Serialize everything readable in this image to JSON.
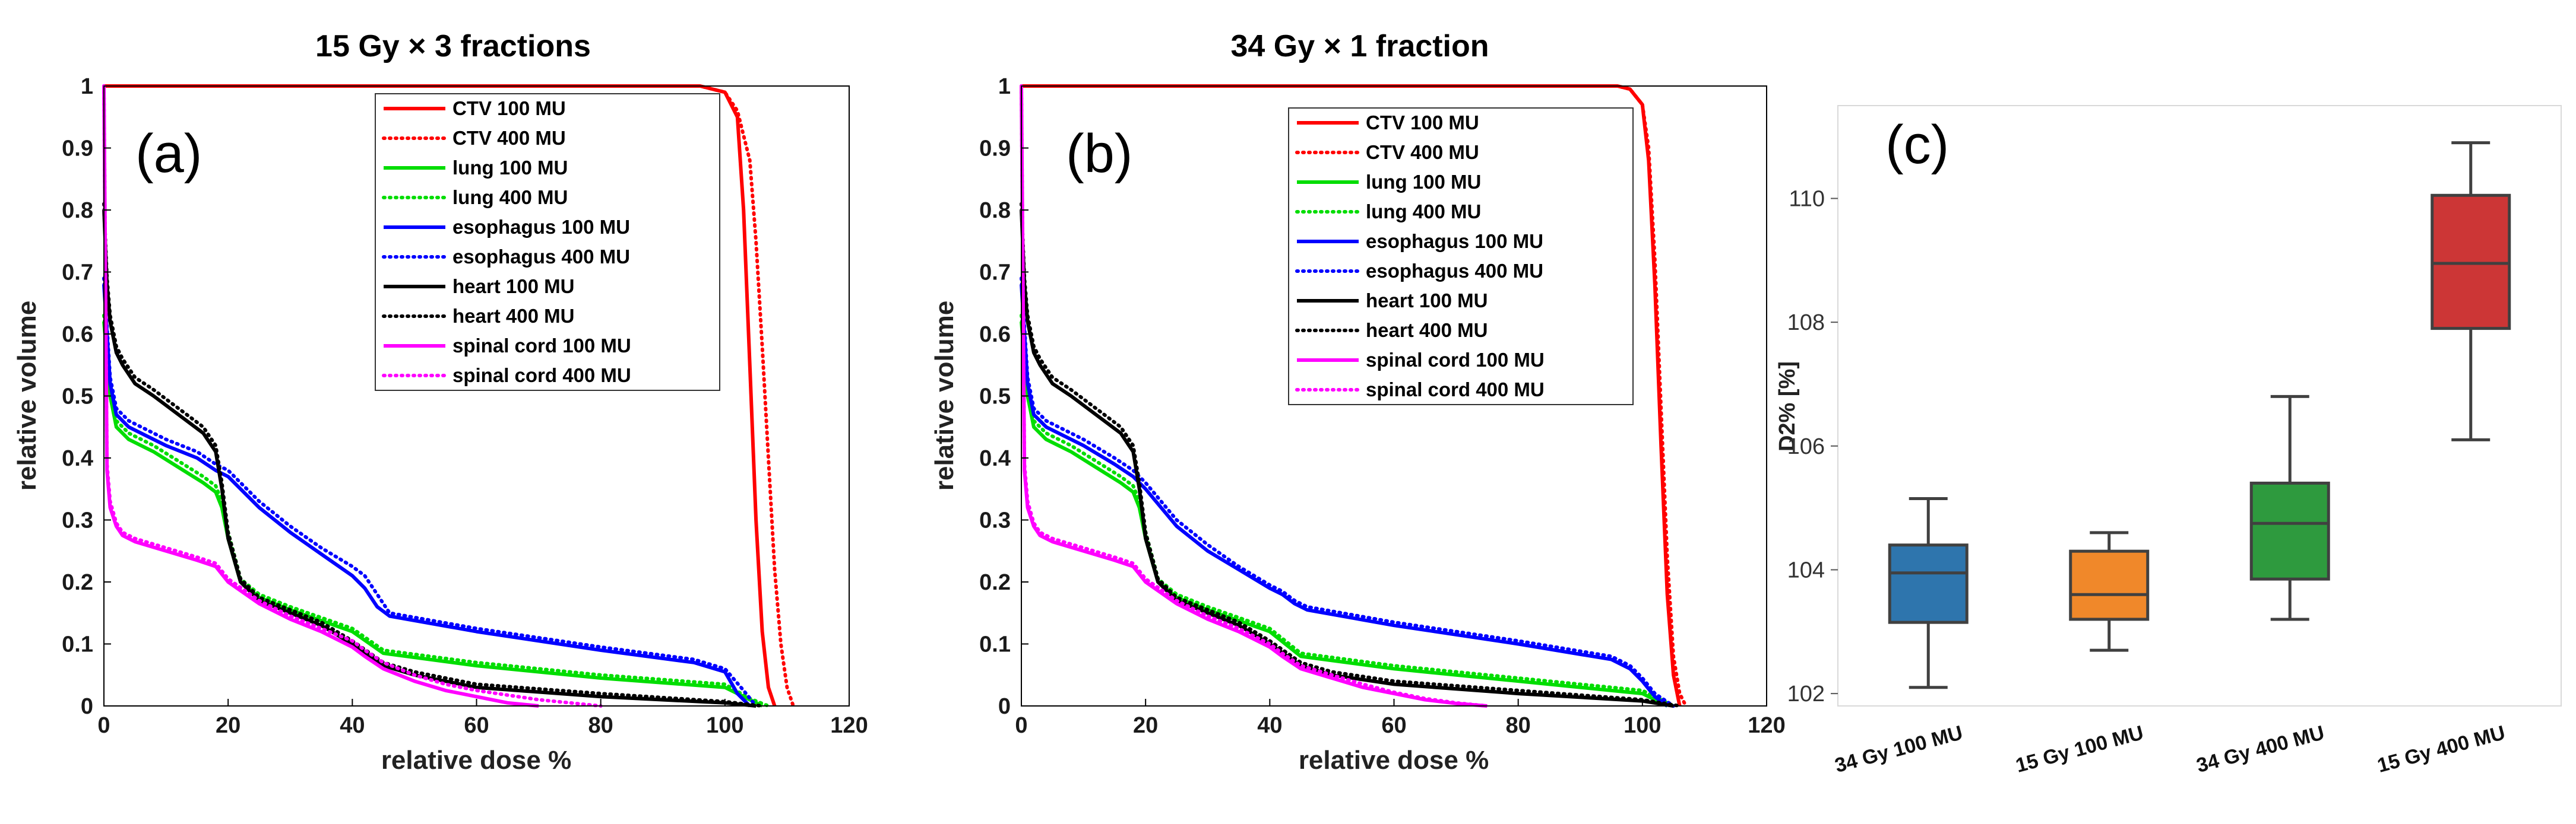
{
  "chart_data": [
    {
      "type": "line",
      "title": "15 Gy × 3 fractions",
      "panel_label": "(a)",
      "xlabel": "relative dose %",
      "ylabel": "relative volume",
      "xlim": [
        0,
        120
      ],
      "ylim": [
        0,
        1
      ],
      "xticks": [
        0,
        20,
        40,
        60,
        80,
        100,
        120
      ],
      "yticks": [
        0,
        0.1,
        0.2,
        0.3,
        0.4,
        0.5,
        0.6,
        0.7,
        0.8,
        0.9,
        1
      ],
      "legend_position": "top-right",
      "series": [
        {
          "name": "CTV 100 MU",
          "color": "#ff0000",
          "dash": "solid",
          "x": [
            0,
            96,
            100,
            102,
            103,
            104,
            105,
            106,
            107,
            108
          ],
          "y": [
            1,
            1,
            0.99,
            0.95,
            0.8,
            0.55,
            0.3,
            0.12,
            0.03,
            0
          ]
        },
        {
          "name": "CTV 400 MU",
          "color": "#ff0000",
          "dash": "dotted",
          "x": [
            0,
            96,
            100,
            102,
            104,
            105,
            106,
            107,
            108,
            109,
            110,
            111
          ],
          "y": [
            1,
            1,
            0.99,
            0.96,
            0.88,
            0.75,
            0.58,
            0.4,
            0.22,
            0.1,
            0.03,
            0
          ]
        },
        {
          "name": "lung 100 MU",
          "color": "#00dd00",
          "dash": "solid",
          "x": [
            0,
            1,
            2,
            4,
            8,
            12,
            16,
            18,
            19,
            20,
            22,
            25,
            30,
            40,
            45,
            60,
            80,
            100,
            104,
            106
          ],
          "y": [
            0.62,
            0.5,
            0.45,
            0.43,
            0.41,
            0.385,
            0.36,
            0.345,
            0.32,
            0.27,
            0.2,
            0.175,
            0.155,
            0.12,
            0.085,
            0.065,
            0.045,
            0.03,
            0.01,
            0
          ]
        },
        {
          "name": "lung 400 MU",
          "color": "#00dd00",
          "dash": "dotted",
          "x": [
            0,
            1,
            2,
            4,
            8,
            12,
            16,
            18,
            19,
            20,
            22,
            25,
            30,
            40,
            45,
            60,
            80,
            100,
            104,
            107
          ],
          "y": [
            0.63,
            0.51,
            0.46,
            0.44,
            0.42,
            0.395,
            0.37,
            0.355,
            0.33,
            0.28,
            0.205,
            0.18,
            0.16,
            0.125,
            0.09,
            0.07,
            0.05,
            0.035,
            0.012,
            0
          ]
        },
        {
          "name": "esophagus 100 MU",
          "color": "#0000ff",
          "dash": "solid",
          "x": [
            0,
            1,
            2,
            4,
            10,
            15,
            18,
            20,
            25,
            30,
            35,
            40,
            42,
            44,
            46,
            60,
            80,
            95,
            100,
            102,
            104
          ],
          "y": [
            0.68,
            0.52,
            0.47,
            0.45,
            0.42,
            0.4,
            0.38,
            0.37,
            0.32,
            0.28,
            0.245,
            0.21,
            0.19,
            0.16,
            0.145,
            0.12,
            0.09,
            0.07,
            0.055,
            0.02,
            0
          ]
        },
        {
          "name": "esophagus 400 MU",
          "color": "#0000ff",
          "dash": "dotted",
          "x": [
            0,
            1,
            2,
            4,
            10,
            15,
            18,
            20,
            25,
            30,
            35,
            40,
            42,
            44,
            46,
            60,
            80,
            95,
            100,
            103,
            105
          ],
          "y": [
            0.69,
            0.53,
            0.48,
            0.46,
            0.43,
            0.41,
            0.39,
            0.38,
            0.33,
            0.29,
            0.255,
            0.225,
            0.21,
            0.18,
            0.15,
            0.125,
            0.095,
            0.075,
            0.06,
            0.025,
            0
          ]
        },
        {
          "name": "heart 100 MU",
          "color": "#000000",
          "dash": "solid",
          "x": [
            0,
            0.5,
            1,
            2,
            3,
            5,
            8,
            12,
            16,
            18,
            19,
            20,
            22,
            25,
            30,
            35,
            40,
            45,
            50,
            60,
            80,
            100,
            105
          ],
          "y": [
            0.8,
            0.68,
            0.62,
            0.57,
            0.55,
            0.52,
            0.5,
            0.47,
            0.44,
            0.41,
            0.35,
            0.27,
            0.2,
            0.17,
            0.15,
            0.13,
            0.1,
            0.065,
            0.05,
            0.03,
            0.015,
            0.005,
            0
          ]
        },
        {
          "name": "heart 400 MU",
          "color": "#000000",
          "dash": "dotted",
          "x": [
            0,
            0.5,
            1,
            2,
            3,
            5,
            8,
            12,
            16,
            18,
            19,
            20,
            22,
            25,
            30,
            35,
            40,
            45,
            50,
            60,
            80,
            100,
            106
          ],
          "y": [
            0.81,
            0.69,
            0.63,
            0.58,
            0.56,
            0.53,
            0.51,
            0.48,
            0.45,
            0.42,
            0.36,
            0.28,
            0.205,
            0.175,
            0.155,
            0.135,
            0.105,
            0.07,
            0.055,
            0.035,
            0.02,
            0.007,
            0
          ]
        },
        {
          "name": "spinal cord 100 MU",
          "color": "#ff00ff",
          "dash": "solid",
          "x": [
            0,
            0.5,
            1,
            2,
            3,
            5,
            10,
            15,
            18,
            20,
            25,
            30,
            35,
            40,
            42,
            45,
            50,
            55,
            60,
            65,
            70
          ],
          "y": [
            1,
            0.38,
            0.32,
            0.29,
            0.275,
            0.265,
            0.25,
            0.235,
            0.225,
            0.2,
            0.165,
            0.14,
            0.12,
            0.095,
            0.08,
            0.06,
            0.04,
            0.025,
            0.015,
            0.005,
            0
          ]
        },
        {
          "name": "spinal cord 400 MU",
          "color": "#ff00ff",
          "dash": "dotted",
          "x": [
            0,
            0.5,
            1,
            2,
            3,
            5,
            10,
            15,
            18,
            20,
            25,
            30,
            35,
            40,
            42,
            45,
            50,
            55,
            60,
            70,
            80
          ],
          "y": [
            1,
            0.39,
            0.33,
            0.295,
            0.28,
            0.27,
            0.255,
            0.24,
            0.23,
            0.205,
            0.17,
            0.145,
            0.125,
            0.105,
            0.09,
            0.07,
            0.05,
            0.035,
            0.025,
            0.01,
            0
          ]
        }
      ]
    },
    {
      "type": "line",
      "title": "34 Gy × 1 fraction",
      "panel_label": "(b)",
      "xlabel": "relative dose %",
      "ylabel": "relative volume",
      "xlim": [
        0,
        120
      ],
      "ylim": [
        0,
        1
      ],
      "xticks": [
        0,
        20,
        40,
        60,
        80,
        100,
        120
      ],
      "yticks": [
        0,
        0.1,
        0.2,
        0.3,
        0.4,
        0.5,
        0.6,
        0.7,
        0.8,
        0.9,
        1
      ],
      "legend_position": "top-right",
      "series": [
        {
          "name": "CTV 100 MU",
          "color": "#ff0000",
          "dash": "solid",
          "x": [
            0,
            96,
            98,
            100,
            101,
            102,
            103,
            104,
            105,
            106
          ],
          "y": [
            1,
            1,
            0.995,
            0.97,
            0.88,
            0.68,
            0.42,
            0.18,
            0.05,
            0
          ]
        },
        {
          "name": "CTV 400 MU",
          "color": "#ff0000",
          "dash": "dotted",
          "x": [
            0,
            96,
            98,
            100,
            101,
            102,
            103,
            104,
            105,
            106,
            107
          ],
          "y": [
            1,
            1,
            0.995,
            0.97,
            0.9,
            0.72,
            0.48,
            0.24,
            0.08,
            0.02,
            0
          ]
        },
        {
          "name": "lung 100 MU",
          "color": "#00dd00",
          "dash": "solid",
          "x": [
            0,
            1,
            2,
            4,
            8,
            12,
            16,
            18,
            19,
            20,
            22,
            25,
            30,
            40,
            45,
            60,
            80,
            100,
            104
          ],
          "y": [
            0.62,
            0.5,
            0.45,
            0.43,
            0.41,
            0.385,
            0.36,
            0.345,
            0.32,
            0.27,
            0.2,
            0.175,
            0.155,
            0.12,
            0.08,
            0.06,
            0.04,
            0.02,
            0
          ]
        },
        {
          "name": "lung 400 MU",
          "color": "#00dd00",
          "dash": "dotted",
          "x": [
            0,
            1,
            2,
            4,
            8,
            12,
            16,
            18,
            19,
            20,
            22,
            25,
            30,
            40,
            45,
            60,
            80,
            100,
            105
          ],
          "y": [
            0.63,
            0.51,
            0.46,
            0.44,
            0.42,
            0.395,
            0.37,
            0.355,
            0.33,
            0.28,
            0.205,
            0.18,
            0.16,
            0.125,
            0.085,
            0.065,
            0.045,
            0.025,
            0
          ]
        },
        {
          "name": "esophagus 100 MU",
          "color": "#0000ff",
          "dash": "solid",
          "x": [
            0,
            1,
            2,
            4,
            10,
            15,
            18,
            20,
            25,
            30,
            35,
            40,
            42,
            44,
            46,
            60,
            80,
            95,
            98,
            100,
            102,
            104
          ],
          "y": [
            0.68,
            0.52,
            0.47,
            0.45,
            0.42,
            0.39,
            0.37,
            0.35,
            0.29,
            0.25,
            0.22,
            0.19,
            0.18,
            0.165,
            0.155,
            0.13,
            0.1,
            0.075,
            0.06,
            0.04,
            0.015,
            0
          ]
        },
        {
          "name": "esophagus 400 MU",
          "color": "#0000ff",
          "dash": "dotted",
          "x": [
            0,
            1,
            2,
            4,
            10,
            15,
            18,
            20,
            25,
            30,
            35,
            40,
            42,
            44,
            46,
            60,
            80,
            95,
            98,
            100,
            102,
            105
          ],
          "y": [
            0.69,
            0.53,
            0.48,
            0.46,
            0.43,
            0.4,
            0.38,
            0.36,
            0.3,
            0.26,
            0.225,
            0.195,
            0.185,
            0.17,
            0.16,
            0.135,
            0.105,
            0.08,
            0.065,
            0.045,
            0.02,
            0
          ]
        },
        {
          "name": "heart 100 MU",
          "color": "#000000",
          "dash": "solid",
          "x": [
            0,
            0.5,
            1,
            2,
            3,
            5,
            8,
            12,
            16,
            18,
            19,
            20,
            22,
            25,
            30,
            35,
            40,
            45,
            50,
            60,
            80,
            100,
            105
          ],
          "y": [
            0.8,
            0.68,
            0.62,
            0.57,
            0.55,
            0.52,
            0.5,
            0.47,
            0.44,
            0.41,
            0.35,
            0.27,
            0.2,
            0.17,
            0.15,
            0.13,
            0.1,
            0.065,
            0.05,
            0.035,
            0.02,
            0.008,
            0
          ]
        },
        {
          "name": "heart 400 MU",
          "color": "#000000",
          "dash": "dotted",
          "x": [
            0,
            0.5,
            1,
            2,
            3,
            5,
            8,
            12,
            16,
            18,
            19,
            20,
            22,
            25,
            30,
            35,
            40,
            45,
            50,
            60,
            80,
            100,
            106
          ],
          "y": [
            0.81,
            0.69,
            0.63,
            0.58,
            0.56,
            0.53,
            0.51,
            0.48,
            0.45,
            0.42,
            0.36,
            0.28,
            0.205,
            0.175,
            0.155,
            0.135,
            0.105,
            0.07,
            0.055,
            0.04,
            0.025,
            0.01,
            0
          ]
        },
        {
          "name": "spinal cord 100 MU",
          "color": "#ff00ff",
          "dash": "solid",
          "x": [
            0,
            0.5,
            1,
            2,
            3,
            5,
            10,
            15,
            18,
            20,
            25,
            30,
            35,
            40,
            42,
            45,
            50,
            55,
            60,
            65,
            70,
            75
          ],
          "y": [
            1,
            0.38,
            0.32,
            0.29,
            0.275,
            0.265,
            0.25,
            0.235,
            0.225,
            0.2,
            0.165,
            0.14,
            0.12,
            0.095,
            0.08,
            0.06,
            0.045,
            0.03,
            0.02,
            0.01,
            0.004,
            0
          ]
        },
        {
          "name": "spinal cord 400 MU",
          "color": "#ff00ff",
          "dash": "dotted",
          "x": [
            0,
            0.5,
            1,
            2,
            3,
            5,
            10,
            15,
            18,
            20,
            25,
            30,
            35,
            40,
            42,
            45,
            50,
            55,
            60,
            65,
            70,
            75
          ],
          "y": [
            1,
            0.39,
            0.33,
            0.295,
            0.28,
            0.27,
            0.255,
            0.24,
            0.23,
            0.205,
            0.17,
            0.145,
            0.125,
            0.1,
            0.085,
            0.065,
            0.05,
            0.035,
            0.022,
            0.012,
            0.005,
            0
          ]
        }
      ]
    },
    {
      "type": "box",
      "title": "",
      "panel_label": "(c)",
      "xlabel": "",
      "ylabel": "D2% [%]",
      "ylim": [
        101.8,
        111.5
      ],
      "yticks": [
        102,
        104,
        106,
        108,
        110
      ],
      "categories": [
        "34 Gy 100 MU",
        "15 Gy 100 MU",
        "34 Gy 400 MU",
        "15 Gy 400 MU"
      ],
      "boxes": [
        {
          "color": "#2e75ad",
          "min": 102.1,
          "q1": 103.15,
          "median": 103.95,
          "q3": 104.4,
          "max": 105.15
        },
        {
          "color": "#f0882a",
          "min": 102.7,
          "q1": 103.2,
          "median": 103.6,
          "q3": 104.3,
          "max": 104.6
        },
        {
          "color": "#2e9a3e",
          "min": 103.2,
          "q1": 103.85,
          "median": 104.75,
          "q3": 105.4,
          "max": 106.8
        },
        {
          "color": "#cc3636",
          "min": 106.1,
          "q1": 107.9,
          "median": 108.95,
          "q3": 110.05,
          "max": 110.9
        }
      ]
    }
  ]
}
